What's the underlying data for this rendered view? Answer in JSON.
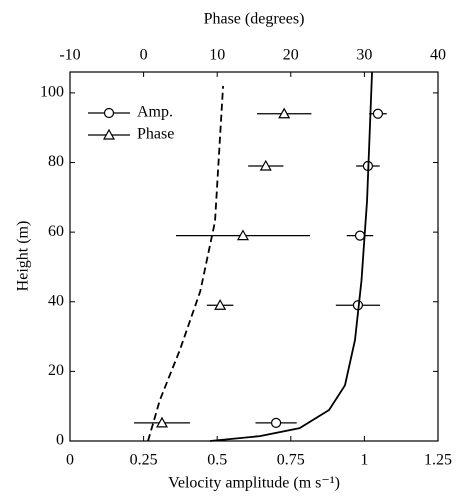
{
  "chart_data": {
    "type": "scatter",
    "xlabel": "Velocity amplitude (m s⁻¹)",
    "x2label": "Phase (degrees)",
    "ylabel": "Height (m)",
    "xlim": [
      0,
      1.25
    ],
    "xticks": [
      0,
      0.25,
      0.5,
      0.75,
      1,
      1.25
    ],
    "x2lim": [
      -10,
      40
    ],
    "x2ticks": [
      -10,
      0,
      10,
      20,
      30,
      40
    ],
    "ylim": [
      0,
      106
    ],
    "yticks": [
      0,
      20,
      40,
      60,
      80,
      100
    ],
    "legend": "upper left",
    "series": [
      {
        "name": "Amp.",
        "marker": "circle",
        "color": "#000",
        "axis": "x",
        "x": [
          1.046,
          1.012,
          0.985,
          0.978,
          0.7
        ],
        "y": [
          94,
          79,
          59,
          39,
          5.2
        ],
        "xerr": [
          0.03,
          0.04,
          0.045,
          0.075,
          0.07
        ]
      },
      {
        "name": "Phase",
        "marker": "triangle",
        "color": "#000",
        "axis": "x2",
        "x": [
          19.1,
          16.6,
          13.5,
          10.4,
          2.5
        ],
        "y": [
          94,
          79,
          59,
          39,
          5.2
        ],
        "xerr": [
          3.7,
          2.4,
          9.1,
          1.8,
          3.8
        ]
      },
      {
        "marker": "line",
        "style": "solid",
        "color": "#000",
        "axis": "x",
        "x": [
          0.476,
          0.645,
          0.78,
          0.88,
          0.934,
          0.968,
          0.99,
          1.009,
          1.026
        ],
        "y": [
          0,
          1.4,
          3.7,
          8.9,
          16,
          29,
          46,
          69,
          106
        ]
      },
      {
        "marker": "line",
        "style": "dashed",
        "color": "#000",
        "axis": "x2",
        "x": [
          0.6,
          2.2,
          4.9,
          7.7,
          9.7,
          10.8
        ],
        "y": [
          0,
          11.7,
          26,
          43,
          63,
          102
        ]
      }
    ]
  }
}
